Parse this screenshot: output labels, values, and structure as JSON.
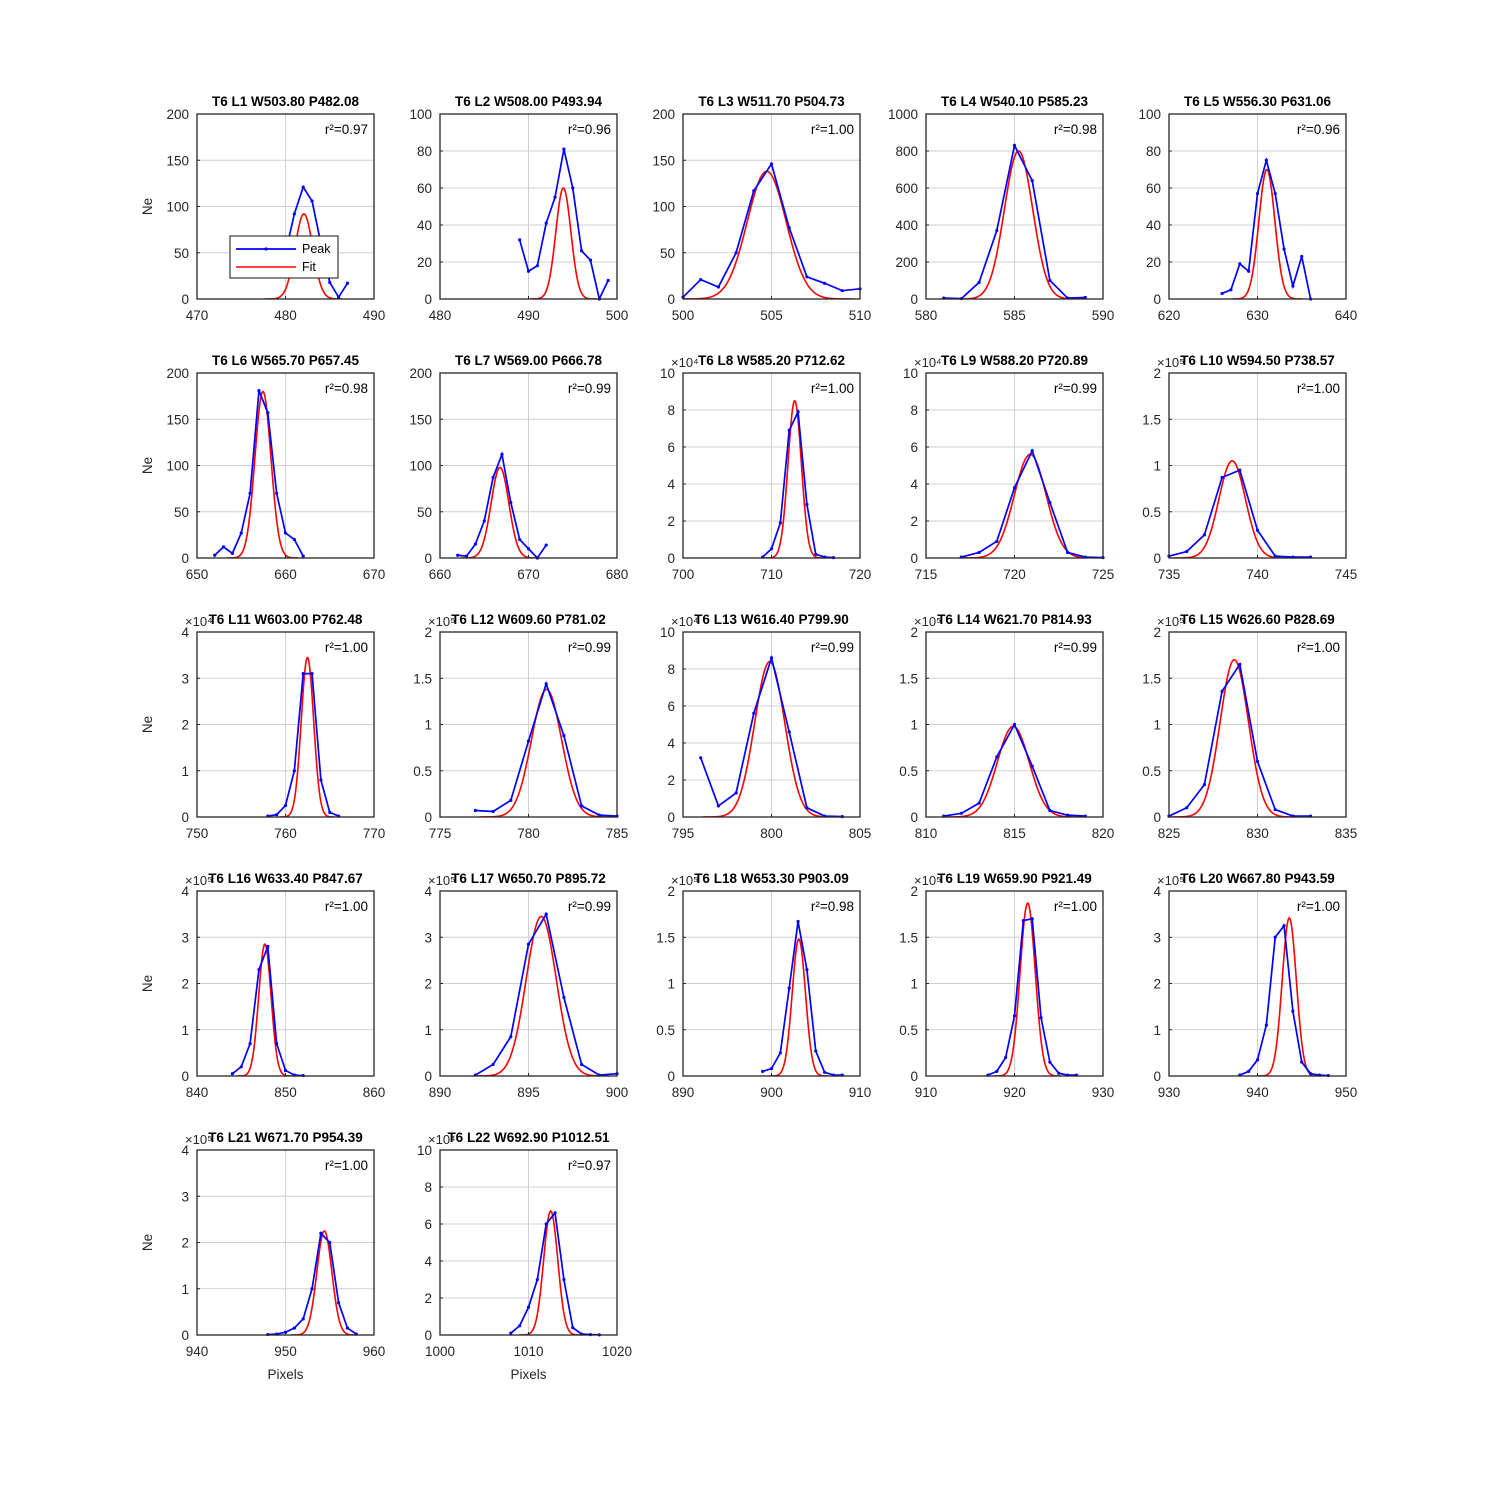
{
  "figure": {
    "ylabel": "Ne",
    "xlabel": "Pixels",
    "legend": [
      "Peak",
      "Fit"
    ],
    "colors": {
      "peak": "#0000ff",
      "fit": "#ff0000",
      "grid": "#d0d0d0",
      "axis": "#262626"
    }
  },
  "chart_data": [
    {
      "type": "line",
      "title": "T6 L1 W503.80 P482.08",
      "r2": "r²=0.97",
      "xlim": [
        470,
        490
      ],
      "xticks": [
        470,
        480,
        490
      ],
      "ylim": [
        0,
        200
      ],
      "yticks": [
        0,
        50,
        100,
        150,
        200
      ],
      "yexp": "",
      "ylabel": "Ne",
      "xlabel": "",
      "legend": "inside, lower-left",
      "peak": {
        "x": [
          480,
          481,
          482,
          483,
          484,
          485,
          486,
          487
        ],
        "y": [
          50,
          92,
          121,
          106,
          60,
          18,
          2,
          17
        ]
      },
      "fit": {
        "amp": 92,
        "mu": 482.08,
        "sigma": 1.0
      }
    },
    {
      "type": "line",
      "title": "T6 L2 W508.00 P493.94",
      "r2": "r²=0.96",
      "xlim": [
        480,
        500
      ],
      "xticks": [
        480,
        490,
        500
      ],
      "ylim": [
        0,
        100
      ],
      "yticks": [
        0,
        20,
        40,
        60,
        80,
        100
      ],
      "yexp": "",
      "ylabel": "",
      "xlabel": "",
      "peak": {
        "x": [
          489,
          490,
          491,
          492,
          493,
          494,
          495,
          496,
          497,
          498,
          499
        ],
        "y": [
          32,
          15,
          18,
          41,
          55,
          81,
          60,
          26,
          21,
          0,
          10
        ]
      },
      "fit": {
        "amp": 60,
        "mu": 493.94,
        "sigma": 0.85
      }
    },
    {
      "type": "line",
      "title": "T6 L3 W511.70 P504.73",
      "r2": "r²=1.00",
      "xlim": [
        500,
        510
      ],
      "xticks": [
        500,
        505,
        510
      ],
      "ylim": [
        0,
        200
      ],
      "yticks": [
        0,
        50,
        100,
        150,
        200
      ],
      "yexp": "",
      "ylabel": "",
      "xlabel": "",
      "peak": {
        "x": [
          500,
          501,
          502,
          503,
          504,
          505,
          506,
          507,
          508,
          509,
          510
        ],
        "y": [
          2,
          21,
          13,
          50,
          117,
          146,
          77,
          24,
          17,
          9,
          11
        ]
      },
      "fit": {
        "amp": 138,
        "mu": 504.73,
        "sigma": 1.1
      }
    },
    {
      "type": "line",
      "title": "T6 L4 W540.10 P585.23",
      "r2": "r²=0.98",
      "xlim": [
        580,
        590
      ],
      "xticks": [
        580,
        585,
        590
      ],
      "ylim": [
        0,
        1000
      ],
      "yticks": [
        0,
        200,
        400,
        600,
        800,
        1000
      ],
      "yexp": "",
      "ylabel": "",
      "xlabel": "",
      "peak": {
        "x": [
          581,
          582,
          583,
          584,
          585,
          586,
          587,
          588,
          589
        ],
        "y": [
          5,
          2,
          90,
          370,
          830,
          640,
          100,
          5,
          8
        ]
      },
      "fit": {
        "amp": 800,
        "mu": 585.23,
        "sigma": 0.8
      }
    },
    {
      "type": "line",
      "title": "T6 L5 W556.30 P631.06",
      "r2": "r²=0.96",
      "xlim": [
        620,
        640
      ],
      "xticks": [
        620,
        630,
        640
      ],
      "ylim": [
        0,
        100
      ],
      "yticks": [
        0,
        20,
        40,
        60,
        80,
        100
      ],
      "yexp": "",
      "ylabel": "",
      "xlabel": "",
      "peak": {
        "x": [
          626,
          627,
          628,
          629,
          630,
          631,
          632,
          633,
          634,
          635,
          636
        ],
        "y": [
          3,
          5,
          19,
          15,
          57,
          75,
          57,
          27,
          7,
          23,
          0
        ]
      },
      "fit": {
        "amp": 70,
        "mu": 631.06,
        "sigma": 0.9
      }
    },
    {
      "type": "line",
      "title": "T6 L6 W565.70 P657.45",
      "r2": "r²=0.98",
      "xlim": [
        650,
        670
      ],
      "xticks": [
        650,
        660,
        670
      ],
      "ylim": [
        0,
        200
      ],
      "yticks": [
        0,
        50,
        100,
        150,
        200
      ],
      "yexp": "",
      "ylabel": "Ne",
      "xlabel": "",
      "peak": {
        "x": [
          652,
          653,
          654,
          655,
          656,
          657,
          658,
          659,
          660,
          661,
          662
        ],
        "y": [
          3,
          12,
          5,
          27,
          70,
          181,
          157,
          70,
          27,
          20,
          2
        ]
      },
      "fit": {
        "amp": 180,
        "mu": 657.45,
        "sigma": 0.9
      }
    },
    {
      "type": "line",
      "title": "T6 L7 W569.00 P666.78",
      "r2": "r²=0.99",
      "xlim": [
        660,
        680
      ],
      "xticks": [
        660,
        670,
        680
      ],
      "ylim": [
        0,
        200
      ],
      "yticks": [
        0,
        50,
        100,
        150,
        200
      ],
      "yexp": "",
      "ylabel": "",
      "xlabel": "",
      "peak": {
        "x": [
          662,
          663,
          664,
          665,
          666,
          667,
          668,
          669,
          670,
          671,
          672
        ],
        "y": [
          3,
          2,
          15,
          40,
          87,
          112,
          60,
          20,
          10,
          0,
          14
        ]
      },
      "fit": {
        "amp": 98,
        "mu": 666.78,
        "sigma": 1.0
      }
    },
    {
      "type": "line",
      "title": "T6 L8 W585.20 P712.62",
      "r2": "r²=1.00",
      "xlim": [
        700,
        720
      ],
      "xticks": [
        700,
        710,
        720
      ],
      "ylim": [
        0,
        10
      ],
      "yticks": [
        0,
        2,
        4,
        6,
        8,
        10
      ],
      "yexp": "×10⁴",
      "ylabel": "",
      "xlabel": "",
      "peak": {
        "x": [
          709,
          710,
          711,
          712,
          713,
          714,
          715,
          716,
          717
        ],
        "y": [
          0.05,
          0.5,
          1.9,
          6.9,
          7.9,
          2.9,
          0.2,
          0.05,
          0.02
        ]
      },
      "fit": {
        "amp": 8.5,
        "mu": 712.62,
        "sigma": 0.75
      }
    },
    {
      "type": "line",
      "title": "T6 L9 W588.20 P720.89",
      "r2": "r²=0.99",
      "xlim": [
        715,
        725
      ],
      "xticks": [
        715,
        720,
        725
      ],
      "ylim": [
        0,
        10
      ],
      "yticks": [
        0,
        2,
        4,
        6,
        8,
        10
      ],
      "yexp": "×10⁴",
      "ylabel": "",
      "xlabel": "",
      "peak": {
        "x": [
          717,
          718,
          719,
          720,
          721,
          722,
          723,
          724,
          725
        ],
        "y": [
          0.05,
          0.3,
          0.9,
          3.8,
          5.8,
          3.0,
          0.3,
          0.05,
          0.02
        ]
      },
      "fit": {
        "amp": 5.6,
        "mu": 720.89,
        "sigma": 0.9
      }
    },
    {
      "type": "line",
      "title": "T6 L10 W594.50 P738.57",
      "r2": "r²=1.00",
      "xlim": [
        735,
        745
      ],
      "xticks": [
        735,
        740,
        745
      ],
      "ylim": [
        0,
        2
      ],
      "yticks": [
        0,
        0.5,
        1,
        1.5,
        2
      ],
      "yexp": "×10⁵",
      "ylabel": "",
      "xlabel": "",
      "peak": {
        "x": [
          735,
          736,
          737,
          738,
          739,
          740,
          741,
          742,
          743
        ],
        "y": [
          0.02,
          0.07,
          0.25,
          0.87,
          0.95,
          0.3,
          0.02,
          0.01,
          0.01
        ]
      },
      "fit": {
        "amp": 1.05,
        "mu": 738.57,
        "sigma": 0.75
      }
    },
    {
      "type": "line",
      "title": "T6 L11 W603.00 P762.48",
      "r2": "r²=1.00",
      "xlim": [
        750,
        770
      ],
      "xticks": [
        750,
        760,
        770
      ],
      "ylim": [
        0,
        4
      ],
      "yticks": [
        0,
        1,
        2,
        3,
        4
      ],
      "yexp": "×10⁴",
      "ylabel": "Ne",
      "xlabel": "",
      "peak": {
        "x": [
          758,
          759,
          760,
          761,
          762,
          763,
          764,
          765,
          766
        ],
        "y": [
          0.02,
          0.05,
          0.25,
          1.0,
          3.1,
          3.1,
          0.8,
          0.1,
          0.02
        ]
      },
      "fit": {
        "amp": 3.45,
        "mu": 762.48,
        "sigma": 0.7
      }
    },
    {
      "type": "line",
      "title": "T6 L12 W609.60 P781.02",
      "r2": "r²=0.99",
      "xlim": [
        775,
        785
      ],
      "xticks": [
        775,
        780,
        785
      ],
      "ylim": [
        0,
        2
      ],
      "yticks": [
        0,
        0.5,
        1,
        1.5,
        2
      ],
      "yexp": "×10⁵",
      "ylabel": "",
      "xlabel": "",
      "peak": {
        "x": [
          777,
          778,
          779,
          780,
          781,
          782,
          783,
          784,
          785
        ],
        "y": [
          0.07,
          0.06,
          0.18,
          0.82,
          1.44,
          0.88,
          0.12,
          0.02,
          0.01
        ]
      },
      "fit": {
        "amp": 1.38,
        "mu": 781.02,
        "sigma": 0.85
      }
    },
    {
      "type": "line",
      "title": "T6 L13 W616.40 P799.90",
      "r2": "r²=0.99",
      "xlim": [
        795,
        805
      ],
      "xticks": [
        795,
        800,
        805
      ],
      "ylim": [
        0,
        10
      ],
      "yticks": [
        0,
        2,
        4,
        6,
        8,
        10
      ],
      "yexp": "×10⁴",
      "ylabel": "",
      "xlabel": "",
      "peak": {
        "x": [
          796,
          797,
          798,
          799,
          800,
          801,
          802,
          803,
          804
        ],
        "y": [
          3.2,
          0.6,
          1.3,
          5.6,
          8.6,
          4.6,
          0.5,
          0.05,
          0.02
        ]
      },
      "fit": {
        "amp": 8.4,
        "mu": 799.9,
        "sigma": 0.85
      }
    },
    {
      "type": "line",
      "title": "T6 L14 W621.70 P814.93",
      "r2": "r²=0.99",
      "xlim": [
        810,
        820
      ],
      "xticks": [
        810,
        815,
        820
      ],
      "ylim": [
        0,
        2
      ],
      "yticks": [
        0,
        0.5,
        1,
        1.5,
        2
      ],
      "yexp": "×10⁵",
      "ylabel": "",
      "xlabel": "",
      "peak": {
        "x": [
          811,
          812,
          813,
          814,
          815,
          816,
          817,
          818,
          819
        ],
        "y": [
          0.01,
          0.04,
          0.15,
          0.65,
          1.0,
          0.55,
          0.07,
          0.02,
          0.01
        ]
      },
      "fit": {
        "amp": 0.98,
        "mu": 814.93,
        "sigma": 0.9
      }
    },
    {
      "type": "line",
      "title": "T6 L15 W626.60 P828.69",
      "r2": "r²=1.00",
      "xlim": [
        825,
        835
      ],
      "xticks": [
        825,
        830,
        835
      ],
      "ylim": [
        0,
        2
      ],
      "yticks": [
        0,
        0.5,
        1,
        1.5,
        2
      ],
      "yexp": "×10⁵",
      "ylabel": "",
      "xlabel": "",
      "peak": {
        "x": [
          825,
          826,
          827,
          828,
          829,
          830,
          831,
          832,
          833
        ],
        "y": [
          0.01,
          0.1,
          0.35,
          1.36,
          1.65,
          0.6,
          0.08,
          0.01,
          0.01
        ]
      },
      "fit": {
        "amp": 1.7,
        "mu": 828.69,
        "sigma": 0.8
      }
    },
    {
      "type": "line",
      "title": "T6 L16 W633.40 P847.67",
      "r2": "r²=1.00",
      "xlim": [
        840,
        860
      ],
      "xticks": [
        840,
        850,
        860
      ],
      "ylim": [
        0,
        4
      ],
      "yticks": [
        0,
        1,
        2,
        3,
        4
      ],
      "yexp": "×10⁵",
      "ylabel": "Ne",
      "xlabel": "",
      "peak": {
        "x": [
          844,
          845,
          846,
          847,
          848,
          849,
          850,
          851,
          852
        ],
        "y": [
          0.05,
          0.2,
          0.7,
          2.3,
          2.8,
          0.7,
          0.12,
          0.02,
          0.01
        ]
      },
      "fit": {
        "amp": 2.85,
        "mu": 847.67,
        "sigma": 0.7
      }
    },
    {
      "type": "line",
      "title": "T6 L17 W650.70 P895.72",
      "r2": "r²=0.99",
      "xlim": [
        890,
        900
      ],
      "xticks": [
        890,
        895,
        900
      ],
      "ylim": [
        0,
        4
      ],
      "yticks": [
        0,
        1,
        2,
        3,
        4
      ],
      "yexp": "×10⁵",
      "ylabel": "",
      "xlabel": "",
      "peak": {
        "x": [
          892,
          893,
          894,
          895,
          896,
          897,
          898,
          899,
          900
        ],
        "y": [
          0.02,
          0.25,
          0.85,
          2.85,
          3.5,
          1.7,
          0.25,
          0.02,
          0.05
        ]
      },
      "fit": {
        "amp": 3.45,
        "mu": 895.72,
        "sigma": 0.85
      }
    },
    {
      "type": "line",
      "title": "T6 L18 W653.30 P903.09",
      "r2": "r²=0.98",
      "xlim": [
        890,
        910
      ],
      "xticks": [
        890,
        900,
        910
      ],
      "ylim": [
        0,
        2
      ],
      "yticks": [
        0,
        0.5,
        1,
        1.5,
        2
      ],
      "yexp": "×10⁵",
      "ylabel": "",
      "xlabel": "",
      "peak": {
        "x": [
          899,
          900,
          901,
          902,
          903,
          904,
          905,
          906,
          907,
          908
        ],
        "y": [
          0.05,
          0.08,
          0.25,
          0.95,
          1.67,
          1.15,
          0.27,
          0.04,
          0.01,
          0.01
        ]
      },
      "fit": {
        "amp": 1.48,
        "mu": 903.09,
        "sigma": 0.75
      }
    },
    {
      "type": "line",
      "title": "T6 L19 W659.90 P921.49",
      "r2": "r²=1.00",
      "xlim": [
        910,
        930
      ],
      "xticks": [
        910,
        920,
        930
      ],
      "ylim": [
        0,
        2
      ],
      "yticks": [
        0,
        0.5,
        1,
        1.5,
        2
      ],
      "yexp": "×10⁵",
      "ylabel": "",
      "xlabel": "",
      "peak": {
        "x": [
          917,
          918,
          919,
          920,
          921,
          922,
          923,
          924,
          925,
          926,
          927
        ],
        "y": [
          0.01,
          0.05,
          0.2,
          0.65,
          1.68,
          1.7,
          0.63,
          0.15,
          0.03,
          0.01,
          0.01
        ]
      },
      "fit": {
        "amp": 1.87,
        "mu": 921.49,
        "sigma": 0.85
      }
    },
    {
      "type": "line",
      "title": "T6 L20 W667.80 P943.59",
      "r2": "r²=1.00",
      "xlim": [
        930,
        950
      ],
      "xticks": [
        930,
        940,
        950
      ],
      "ylim": [
        0,
        4
      ],
      "yticks": [
        0,
        1,
        2,
        3,
        4
      ],
      "yexp": "×10⁵",
      "ylabel": "",
      "xlabel": "",
      "peak": {
        "x": [
          938,
          939,
          940,
          941,
          942,
          943,
          944,
          945,
          946,
          947,
          948
        ],
        "y": [
          0.02,
          0.1,
          0.35,
          1.1,
          3.0,
          3.25,
          1.4,
          0.3,
          0.05,
          0.02,
          0.01
        ]
      },
      "fit": {
        "amp": 3.42,
        "mu": 943.59,
        "sigma": 0.8
      }
    },
    {
      "type": "line",
      "title": "T6 L21 W671.70 P954.39",
      "r2": "r²=1.00",
      "xlim": [
        940,
        960
      ],
      "xticks": [
        940,
        950,
        960
      ],
      "ylim": [
        0,
        4
      ],
      "yticks": [
        0,
        1,
        2,
        3,
        4
      ],
      "yexp": "×10⁵",
      "ylabel": "Ne",
      "xlabel": "Pixels",
      "peak": {
        "x": [
          948,
          949,
          950,
          951,
          952,
          953,
          954,
          955,
          956,
          957,
          958
        ],
        "y": [
          0.01,
          0.02,
          0.06,
          0.15,
          0.35,
          1.0,
          2.2,
          2.0,
          0.7,
          0.15,
          0.02
        ]
      },
      "fit": {
        "amp": 2.25,
        "mu": 954.39,
        "sigma": 0.85
      }
    },
    {
      "type": "line",
      "title": "T6 L22 W692.90 P1012.51",
      "r2": "r²=0.97",
      "xlim": [
        1000,
        1020
      ],
      "xticks": [
        1000,
        1010,
        1020
      ],
      "ylim": [
        0,
        10
      ],
      "yticks": [
        0,
        2,
        4,
        6,
        8,
        10
      ],
      "yexp": "×10⁴",
      "ylabel": "",
      "xlabel": "Pixels",
      "peak": {
        "x": [
          1008,
          1009,
          1010,
          1011,
          1012,
          1013,
          1014,
          1015,
          1016,
          1017,
          1018
        ],
        "y": [
          0.1,
          0.5,
          1.5,
          3.0,
          6.0,
          6.6,
          3.0,
          0.4,
          0.05,
          0.02,
          0.01
        ]
      },
      "fit": {
        "amp": 6.7,
        "mu": 1012.51,
        "sigma": 0.8
      }
    }
  ]
}
